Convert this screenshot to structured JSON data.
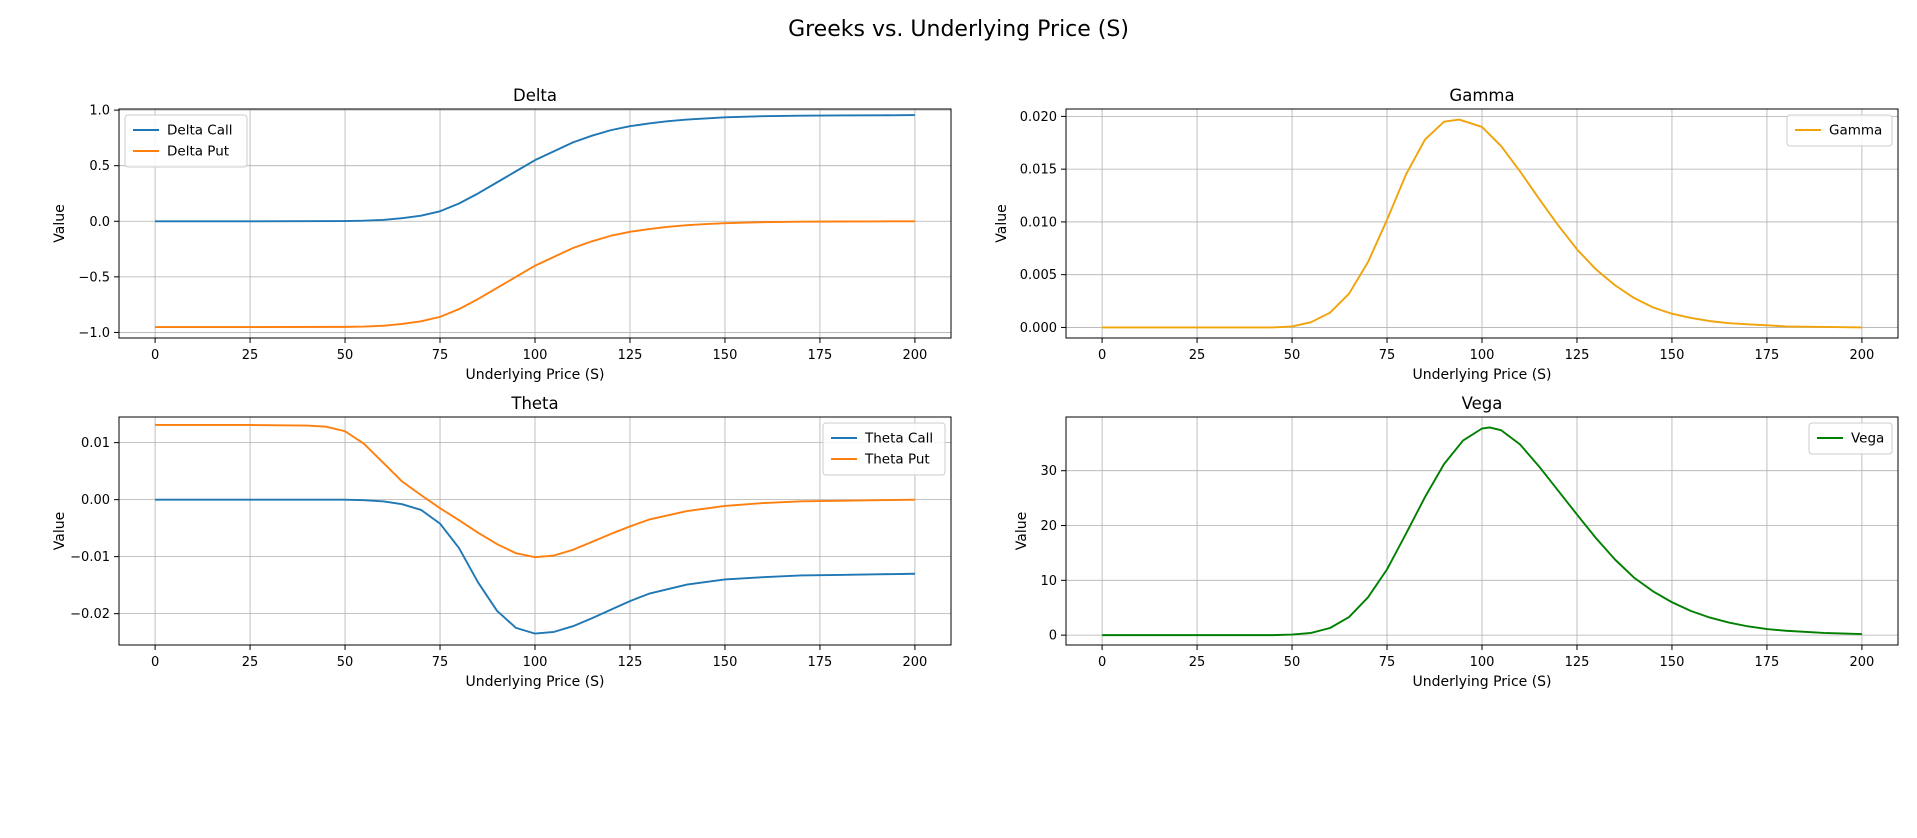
{
  "title": "Greeks vs. Underlying Price (S)",
  "chart_data": [
    {
      "id": "delta",
      "type": "line",
      "title": "Delta",
      "xlabel": "Underlying Price (S)",
      "ylabel": "Value",
      "xlim": [
        -9.5,
        209.5
      ],
      "ylim": [
        -1.05,
        1.01
      ],
      "xticks": [
        0,
        25,
        50,
        75,
        100,
        125,
        150,
        175,
        200
      ],
      "yticks": [
        -1.0,
        -0.5,
        0.0,
        0.5,
        1.0
      ],
      "ytick_labels": [
        "−1.0",
        "−0.5",
        "0.0",
        "0.5",
        "1.0"
      ],
      "grid": true,
      "legend": "upper-left",
      "series": [
        {
          "name": "Delta Call",
          "color": "#1f77b4",
          "x": [
            0,
            25,
            50,
            55,
            60,
            65,
            70,
            75,
            80,
            85,
            90,
            95,
            100,
            105,
            110,
            115,
            120,
            125,
            130,
            135,
            140,
            145,
            150,
            160,
            170,
            180,
            190,
            200
          ],
          "values": [
            0.0,
            0.0,
            0.002,
            0.005,
            0.012,
            0.028,
            0.05,
            0.09,
            0.16,
            0.25,
            0.35,
            0.45,
            0.55,
            0.63,
            0.71,
            0.77,
            0.82,
            0.855,
            0.88,
            0.9,
            0.915,
            0.925,
            0.935,
            0.945,
            0.95,
            0.952,
            0.953,
            0.955
          ]
        },
        {
          "name": "Delta Put",
          "color": "#ff7f0e",
          "x": [
            0,
            25,
            50,
            55,
            60,
            65,
            70,
            75,
            80,
            85,
            90,
            95,
            100,
            105,
            110,
            115,
            120,
            125,
            130,
            135,
            140,
            145,
            150,
            160,
            170,
            180,
            190,
            200
          ],
          "values": [
            -0.952,
            -0.952,
            -0.95,
            -0.947,
            -0.94,
            -0.924,
            -0.9,
            -0.86,
            -0.79,
            -0.7,
            -0.6,
            -0.5,
            -0.4,
            -0.32,
            -0.24,
            -0.18,
            -0.13,
            -0.095,
            -0.07,
            -0.05,
            -0.035,
            -0.025,
            -0.017,
            -0.008,
            -0.004,
            -0.002,
            -0.001,
            0.0
          ]
        }
      ]
    },
    {
      "id": "gamma",
      "type": "line",
      "title": "Gamma",
      "xlabel": "Underlying Price (S)",
      "ylabel": "Value",
      "xlim": [
        -9.5,
        209.5
      ],
      "ylim": [
        -0.001,
        0.0207
      ],
      "xticks": [
        0,
        25,
        50,
        75,
        100,
        125,
        150,
        175,
        200
      ],
      "yticks": [
        0.0,
        0.005,
        0.01,
        0.015,
        0.02
      ],
      "ytick_labels": [
        "0.000",
        "0.005",
        "0.010",
        "0.015",
        "0.020"
      ],
      "grid": true,
      "legend": "upper-right",
      "series": [
        {
          "name": "Gamma",
          "color": "#f0a30a",
          "x": [
            0,
            25,
            45,
            50,
            55,
            60,
            65,
            70,
            75,
            80,
            85,
            90,
            94,
            100,
            105,
            110,
            115,
            120,
            125,
            130,
            135,
            140,
            145,
            150,
            155,
            160,
            165,
            170,
            175,
            180,
            190,
            200
          ],
          "values": [
            0.0,
            0.0,
            0.0,
            0.0001,
            0.0005,
            0.0014,
            0.0032,
            0.0062,
            0.0102,
            0.0145,
            0.0178,
            0.0195,
            0.0197,
            0.019,
            0.0172,
            0.0148,
            0.0122,
            0.0097,
            0.0074,
            0.0055,
            0.004,
            0.0028,
            0.0019,
            0.0013,
            0.0009,
            0.0006,
            0.0004,
            0.0003,
            0.0002,
            0.0001,
            5e-05,
            0.0
          ]
        }
      ]
    },
    {
      "id": "theta",
      "type": "line",
      "title": "Theta",
      "xlabel": "Underlying Price (S)",
      "ylabel": "Value",
      "xlim": [
        -9.5,
        209.5
      ],
      "ylim": [
        -0.0255,
        0.0145
      ],
      "xticks": [
        0,
        25,
        50,
        75,
        100,
        125,
        150,
        175,
        200
      ],
      "yticks": [
        -0.02,
        -0.01,
        0.0,
        0.01
      ],
      "ytick_labels": [
        "−0.02",
        "−0.01",
        "0.00",
        "0.01"
      ],
      "grid": true,
      "legend": "upper-right",
      "series": [
        {
          "name": "Theta Call",
          "color": "#1f77b4",
          "x": [
            0,
            25,
            50,
            55,
            60,
            65,
            70,
            75,
            80,
            85,
            90,
            95,
            100,
            105,
            110,
            115,
            120,
            125,
            130,
            140,
            150,
            160,
            170,
            180,
            190,
            200
          ],
          "values": [
            0.0,
            0.0,
            0.0,
            -0.0001,
            -0.0003,
            -0.0008,
            -0.0018,
            -0.0042,
            -0.0085,
            -0.0145,
            -0.0195,
            -0.0225,
            -0.0235,
            -0.0232,
            -0.0222,
            -0.0208,
            -0.0193,
            -0.0178,
            -0.0165,
            -0.0149,
            -0.014,
            -0.0136,
            -0.0133,
            -0.0132,
            -0.0131,
            -0.013
          ]
        },
        {
          "name": "Theta Put",
          "color": "#ff7f0e",
          "x": [
            0,
            25,
            40,
            45,
            50,
            55,
            60,
            65,
            70,
            75,
            80,
            85,
            90,
            95,
            100,
            105,
            110,
            115,
            120,
            125,
            130,
            140,
            150,
            160,
            170,
            180,
            190,
            200
          ],
          "values": [
            0.0131,
            0.0131,
            0.013,
            0.0128,
            0.012,
            0.0098,
            0.0065,
            0.0032,
            0.0008,
            -0.0015,
            -0.0036,
            -0.0058,
            -0.0078,
            -0.0094,
            -0.0101,
            -0.0098,
            -0.0088,
            -0.0074,
            -0.006,
            -0.0047,
            -0.0035,
            -0.002,
            -0.0011,
            -0.0006,
            -0.0003,
            -0.0002,
            -0.0001,
            0.0
          ]
        }
      ]
    },
    {
      "id": "vega",
      "type": "line",
      "title": "Vega",
      "xlabel": "Underlying Price (S)",
      "ylabel": "Value",
      "xlim": [
        -9.5,
        209.5
      ],
      "ylim": [
        -1.8,
        39.8
      ],
      "xticks": [
        0,
        25,
        50,
        75,
        100,
        125,
        150,
        175,
        200
      ],
      "yticks": [
        0,
        10,
        20,
        30
      ],
      "ytick_labels": [
        "0",
        "10",
        "20",
        "30"
      ],
      "grid": true,
      "legend": "upper-right",
      "series": [
        {
          "name": "Vega",
          "color": "#008000",
          "x": [
            0,
            25,
            45,
            50,
            55,
            60,
            65,
            70,
            75,
            80,
            85,
            90,
            95,
            100,
            102,
            105,
            110,
            115,
            120,
            125,
            130,
            135,
            140,
            145,
            150,
            155,
            160,
            165,
            170,
            175,
            180,
            190,
            200
          ],
          "values": [
            0.0,
            0.0,
            0.0,
            0.1,
            0.4,
            1.3,
            3.3,
            6.9,
            12.0,
            18.5,
            25.2,
            31.2,
            35.5,
            37.7,
            37.9,
            37.4,
            34.8,
            30.8,
            26.4,
            22.0,
            17.7,
            13.8,
            10.5,
            8.0,
            6.0,
            4.4,
            3.2,
            2.3,
            1.6,
            1.1,
            0.8,
            0.4,
            0.2
          ]
        }
      ]
    }
  ]
}
